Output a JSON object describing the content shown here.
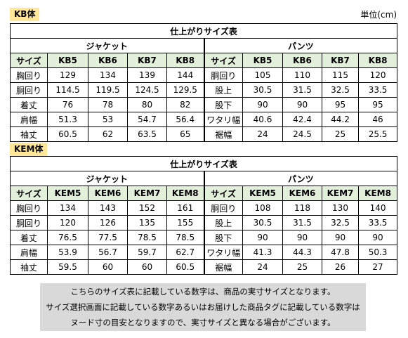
{
  "header": {
    "unit": "単位(cm)"
  },
  "tables": [
    {
      "label": "KB体",
      "title": "仕上がりサイズ表",
      "jacket": "ジャケット",
      "pants": "パンツ",
      "columns": [
        "サイズ",
        "KB5",
        "KB6",
        "KB7",
        "KB8",
        "サイズ",
        "KB5",
        "KB6",
        "KB7",
        "KB8"
      ],
      "rows": [
        [
          "胸回り",
          "129",
          "134",
          "139",
          "144",
          "胴回り",
          "105",
          "110",
          "115",
          "120"
        ],
        [
          "胴回り",
          "114.5",
          "119.5",
          "124.5",
          "129.5",
          "股上",
          "30.5",
          "31.5",
          "32.5",
          "33.5"
        ],
        [
          "着丈",
          "76",
          "78",
          "80",
          "82",
          "股下",
          "90",
          "90",
          "95",
          "95"
        ],
        [
          "肩幅",
          "51.3",
          "53",
          "54.7",
          "56.4",
          "ワタリ幅",
          "40.6",
          "42.4",
          "44.2",
          "46"
        ],
        [
          "袖丈",
          "60.5",
          "62",
          "63.5",
          "65",
          "裾幅",
          "24",
          "24.5",
          "25",
          "25.5"
        ]
      ]
    },
    {
      "label": "KEM体",
      "title": "仕上がりサイズ表",
      "jacket": "ジャケット",
      "pants": "パンツ",
      "columns": [
        "サイズ",
        "KEM5",
        "KEM6",
        "KEM7",
        "KEM8",
        "サイズ",
        "KEM5",
        "KEM6",
        "KEM7",
        "KEM8"
      ],
      "rows": [
        [
          "胸回り",
          "134",
          "143",
          "152",
          "161",
          "胴回り",
          "108",
          "118",
          "130",
          "140"
        ],
        [
          "胴回り",
          "120",
          "126",
          "135",
          "155",
          "股上",
          "30.5",
          "31.5",
          "32.5",
          "33.5"
        ],
        [
          "着丈",
          "76.5",
          "77.5",
          "78.5",
          "78.5",
          "股下",
          "90",
          "90",
          "90",
          "90"
        ],
        [
          "肩幅",
          "53.9",
          "56.7",
          "59.7",
          "62.7",
          "ワタリ幅",
          "41.3",
          "44.3",
          "47.8",
          "50.3"
        ],
        [
          "袖丈",
          "59.5",
          "60",
          "60",
          "60.5",
          "裾幅",
          "24",
          "25",
          "26",
          "27"
        ]
      ]
    }
  ],
  "note": {
    "lines": [
      "こちらのサイズ表に記載している数字は、商品の実寸サイズとなります。",
      "サイズ選択画面に記載している数字あるいはお届けした商品タグに記載している数字は",
      "ヌード寸の目安となりますので、実寸サイズと異なる場合がございます。"
    ]
  }
}
